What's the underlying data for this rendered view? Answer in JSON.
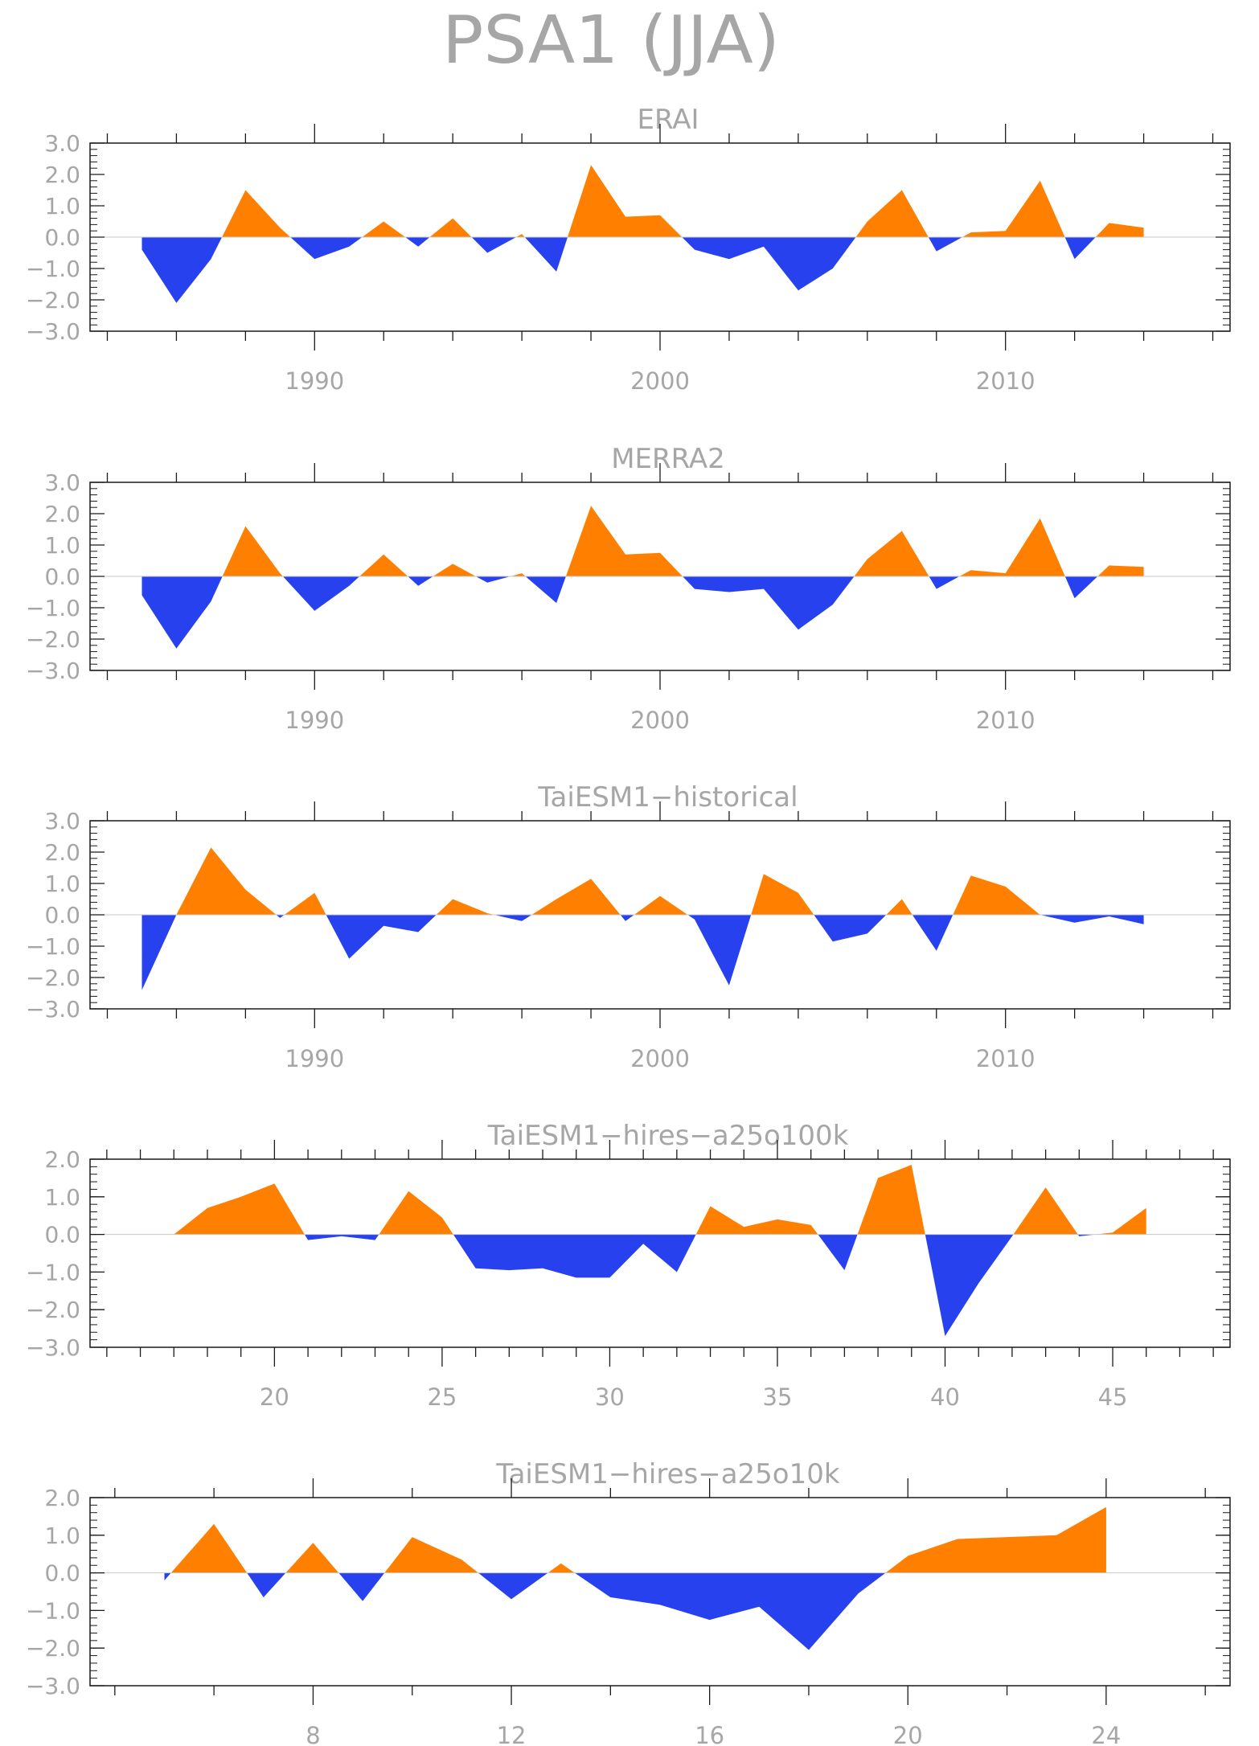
{
  "title": "PSA1 (JJA)",
  "colors": {
    "positive": "#ff8000",
    "negative": "#2741ef",
    "axis": "#1a1a1a",
    "text": "#a6a6a6"
  },
  "chart_data": [
    {
      "type": "area",
      "title": "ERAI",
      "xlim": [
        1983.5,
        2016.5
      ],
      "ylim": [
        -3.0,
        3.0
      ],
      "yticks": [
        "3.0",
        "2.0",
        "1.0",
        "0.0",
        "-1.0",
        "-2.0",
        "-3.0"
      ],
      "xticks": [
        {
          "value": 1990,
          "label": "1990"
        },
        {
          "value": 2000,
          "label": "2000"
        },
        {
          "value": 2010,
          "label": "2010"
        }
      ],
      "x": [
        1985,
        1986,
        1987,
        1988,
        1989,
        1990,
        1991,
        1992,
        1993,
        1994,
        1995,
        1996,
        1997,
        1998,
        1999,
        2000,
        2001,
        2002,
        2003,
        2004,
        2005,
        2006,
        2007,
        2008,
        2009,
        2010,
        2011,
        2012,
        2013,
        2014
      ],
      "values": [
        -0.4,
        -2.1,
        -0.7,
        1.5,
        0.3,
        -0.7,
        -0.3,
        0.5,
        -0.3,
        0.6,
        -0.5,
        0.1,
        -1.1,
        2.3,
        0.65,
        0.7,
        -0.4,
        -0.7,
        -0.3,
        -1.7,
        -1.0,
        0.5,
        1.5,
        -0.45,
        0.15,
        0.2,
        1.8,
        -0.7,
        0.45,
        0.3
      ]
    },
    {
      "type": "area",
      "title": "MERRA2",
      "xlim": [
        1983.5,
        2016.5
      ],
      "ylim": [
        -3.0,
        3.0
      ],
      "yticks": [
        "3.0",
        "2.0",
        "1.0",
        "0.0",
        "-1.0",
        "-2.0",
        "-3.0"
      ],
      "xticks": [
        {
          "value": 1990,
          "label": "1990"
        },
        {
          "value": 2000,
          "label": "2000"
        },
        {
          "value": 2010,
          "label": "2010"
        }
      ],
      "x": [
        1985,
        1986,
        1987,
        1988,
        1989,
        1990,
        1991,
        1992,
        1993,
        1994,
        1995,
        1996,
        1997,
        1998,
        1999,
        2000,
        2001,
        2002,
        2003,
        2004,
        2005,
        2006,
        2007,
        2008,
        2009,
        2010,
        2011,
        2012,
        2013,
        2014
      ],
      "values": [
        -0.6,
        -2.3,
        -0.8,
        1.6,
        0.1,
        -1.1,
        -0.3,
        0.7,
        -0.3,
        0.4,
        -0.2,
        0.1,
        -0.85,
        2.25,
        0.7,
        0.75,
        -0.4,
        -0.5,
        -0.4,
        -1.7,
        -0.9,
        0.55,
        1.45,
        -0.4,
        0.2,
        0.1,
        1.85,
        -0.7,
        0.35,
        0.3
      ]
    },
    {
      "type": "area",
      "title": "TaiESM1−historical",
      "xlim": [
        1983.5,
        2016.5
      ],
      "ylim": [
        -3.0,
        3.0
      ],
      "yticks": [
        "3.0",
        "2.0",
        "1.0",
        "0.0",
        "-1.0",
        "-2.0",
        "-3.0"
      ],
      "xticks": [
        {
          "value": 1990,
          "label": "1990"
        },
        {
          "value": 2000,
          "label": "2000"
        },
        {
          "value": 2010,
          "label": "2010"
        }
      ],
      "x": [
        1985,
        1986,
        1987,
        1988,
        1989,
        1990,
        1991,
        1992,
        1993,
        1994,
        1995,
        1996,
        1997,
        1998,
        1999,
        2000,
        2001,
        2002,
        2003,
        2004,
        2005,
        2006,
        2007,
        2008,
        2009,
        2010,
        2011,
        2012,
        2013,
        2014
      ],
      "values": [
        -2.4,
        0.0,
        2.15,
        0.8,
        -0.1,
        0.7,
        -1.4,
        -0.35,
        -0.55,
        0.5,
        0.05,
        -0.2,
        0.5,
        1.15,
        -0.2,
        0.6,
        -0.15,
        -2.25,
        1.3,
        0.7,
        -0.85,
        -0.6,
        0.5,
        -1.15,
        1.25,
        0.9,
        0.0,
        -0.25,
        -0.05,
        -0.3
      ]
    },
    {
      "type": "area",
      "title": "TaiESM1−hires−a25o100k",
      "xlim": [
        14.5,
        48.5
      ],
      "ylim": [
        -3.0,
        2.0
      ],
      "yticks": [
        "2.0",
        "1.0",
        "0.0",
        "-1.0",
        "-2.0",
        "-3.0"
      ],
      "xticks": [
        {
          "value": 20,
          "label": "20"
        },
        {
          "value": 25,
          "label": "25"
        },
        {
          "value": 30,
          "label": "30"
        },
        {
          "value": 35,
          "label": "35"
        },
        {
          "value": 40,
          "label": "40"
        },
        {
          "value": 45,
          "label": "45"
        }
      ],
      "x": [
        17,
        18,
        19,
        20,
        21,
        22,
        23,
        24,
        25,
        26,
        27,
        28,
        29,
        30,
        31,
        32,
        33,
        34,
        35,
        36,
        37,
        38,
        39,
        40,
        41,
        42,
        43,
        44,
        45,
        46
      ],
      "values": [
        0.0,
        0.7,
        1.0,
        1.35,
        -0.15,
        -0.05,
        -0.15,
        1.15,
        0.45,
        -0.9,
        -0.95,
        -0.9,
        -1.15,
        -1.15,
        -0.25,
        -1.0,
        0.75,
        0.2,
        0.4,
        0.25,
        -0.95,
        1.5,
        1.85,
        -2.7,
        -1.3,
        -0.05,
        1.25,
        -0.05,
        0.05,
        0.7
      ]
    },
    {
      "type": "area",
      "title": "TaiESM1−hires−a25o10k",
      "xlim": [
        3.5,
        26.5
      ],
      "ylim": [
        -3.0,
        2.0
      ],
      "yticks": [
        "2.0",
        "1.0",
        "0.0",
        "-1.0",
        "-2.0",
        "-3.0"
      ],
      "xticks": [
        {
          "value": 8,
          "label": "8"
        },
        {
          "value": 12,
          "label": "12"
        },
        {
          "value": 16,
          "label": "16"
        },
        {
          "value": 20,
          "label": "20"
        },
        {
          "value": 24,
          "label": "24"
        }
      ],
      "x": [
        5,
        6,
        7,
        8,
        9,
        10,
        11,
        12,
        13,
        14,
        15,
        16,
        17,
        18,
        19,
        20,
        21,
        22,
        23,
        24
      ],
      "values": [
        -0.2,
        1.3,
        -0.65,
        0.8,
        -0.75,
        0.95,
        0.35,
        -0.7,
        0.25,
        -0.65,
        -0.85,
        -1.25,
        -0.9,
        -2.05,
        -0.55,
        0.45,
        0.9,
        0.95,
        1.0,
        1.75
      ]
    }
  ]
}
